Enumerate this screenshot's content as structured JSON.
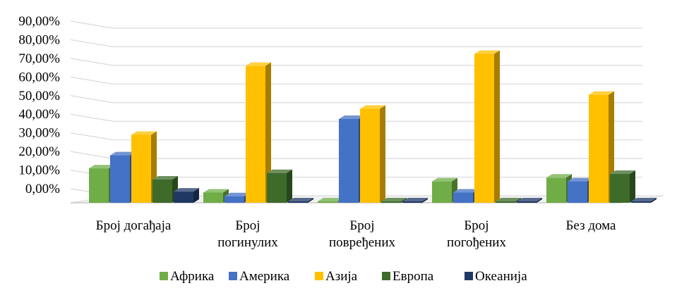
{
  "chart_data": {
    "type": "bar",
    "style": "3d-clustered-column",
    "title": "",
    "xlabel": "",
    "ylabel": "",
    "ylim": [
      0,
      90
    ],
    "y_ticks": [
      "0,00%",
      "10,00%",
      "20,00%",
      "30,00%",
      "40,00%",
      "50,00%",
      "60,00%",
      "70,00%",
      "80,00%",
      "90,00%"
    ],
    "grid": true,
    "legend_position": "bottom",
    "categories": [
      [
        "Број догађаја"
      ],
      [
        "Број",
        "погинулих"
      ],
      [
        "Број",
        "повређених"
      ],
      [
        "Број",
        "погођених"
      ],
      [
        "Без дома"
      ]
    ],
    "series": [
      {
        "name": "Африка",
        "color": "#70AD47",
        "values": [
          18.5,
          5.5,
          0.5,
          11.5,
          13.5
        ]
      },
      {
        "name": "Америка",
        "color": "#4472C4",
        "values": [
          25.5,
          3.5,
          45.0,
          5.5,
          11.5
        ]
      },
      {
        "name": "Азија",
        "color": "#FFC000",
        "values": [
          36.5,
          73.5,
          50.5,
          80.0,
          58.0
        ]
      },
      {
        "name": "Европа",
        "color": "#3E6B2A",
        "values": [
          12.5,
          16.0,
          0.3,
          0.3,
          15.5
        ]
      },
      {
        "name": "Океанија",
        "color": "#203864",
        "values": [
          6.0,
          0.3,
          0.3,
          0.3,
          0.5
        ]
      }
    ]
  }
}
